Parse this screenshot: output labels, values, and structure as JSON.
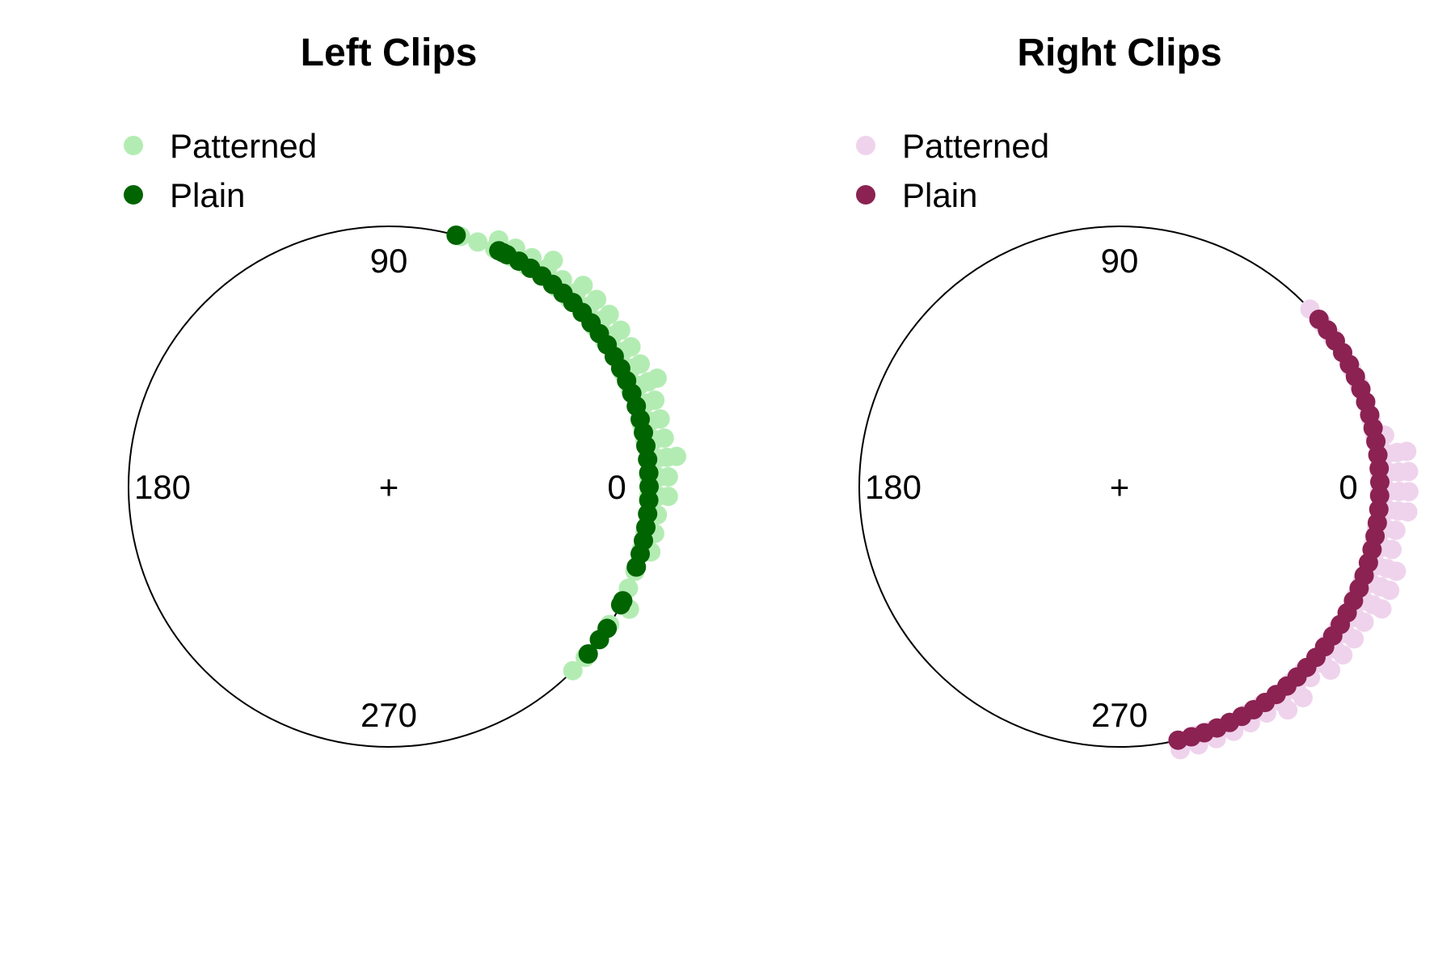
{
  "chart_data": [
    {
      "type": "circular-stacked-dot",
      "title": "Left Clips",
      "angle_labels": [
        "0",
        "90",
        "180",
        "270"
      ],
      "center_mark": "+",
      "legend_placement": "top-left",
      "series": [
        {
          "name": "Patterned",
          "color": "#b3ecb3",
          "bins": [
            {
              "angle": -45,
              "count": 1
            },
            {
              "angle": -41,
              "count": 1
            },
            {
              "angle": -36,
              "count": 1
            },
            {
              "angle": -32,
              "count": 1
            },
            {
              "angle": -27,
              "count": 2
            },
            {
              "angle": -23,
              "count": 1
            },
            {
              "angle": -19,
              "count": 1
            },
            {
              "angle": -14,
              "count": 2
            },
            {
              "angle": -10,
              "count": 2
            },
            {
              "angle": -6,
              "count": 2
            },
            {
              "angle": -2,
              "count": 3
            },
            {
              "angle": 2,
              "count": 3
            },
            {
              "angle": 6,
              "count": 4
            },
            {
              "angle": 10,
              "count": 3
            },
            {
              "angle": 14,
              "count": 3
            },
            {
              "angle": 18,
              "count": 3
            },
            {
              "angle": 22,
              "count": 4
            },
            {
              "angle": 26,
              "count": 3
            },
            {
              "angle": 30,
              "count": 3
            },
            {
              "angle": 34,
              "count": 3
            },
            {
              "angle": 38,
              "count": 3
            },
            {
              "angle": 42,
              "count": 3
            },
            {
              "angle": 46,
              "count": 3
            },
            {
              "angle": 50,
              "count": 2
            },
            {
              "angle": 54,
              "count": 3
            },
            {
              "angle": 58,
              "count": 2
            },
            {
              "angle": 62,
              "count": 2
            },
            {
              "angle": 66,
              "count": 2
            },
            {
              "angle": 70,
              "count": 1
            },
            {
              "angle": 74,
              "count": 1
            }
          ]
        },
        {
          "name": "Plain",
          "color": "#006400",
          "bins": [
            {
              "angle": 75,
              "count": 1
            },
            {
              "angle": 65,
              "count": 1
            },
            {
              "angle": 64,
              "count": 1
            },
            {
              "angle": 63,
              "count": 1
            },
            {
              "angle": 60,
              "count": 1
            },
            {
              "angle": 57,
              "count": 1
            },
            {
              "angle": 54,
              "count": 1
            },
            {
              "angle": 51,
              "count": 1
            },
            {
              "angle": 48,
              "count": 1
            },
            {
              "angle": 45,
              "count": 1
            },
            {
              "angle": 42,
              "count": 1
            },
            {
              "angle": 39,
              "count": 1
            },
            {
              "angle": 36,
              "count": 1
            },
            {
              "angle": 33,
              "count": 1
            },
            {
              "angle": 30,
              "count": 1
            },
            {
              "angle": 27,
              "count": 1
            },
            {
              "angle": 24,
              "count": 1
            },
            {
              "angle": 21,
              "count": 1
            },
            {
              "angle": 18,
              "count": 1
            },
            {
              "angle": 15,
              "count": 1
            },
            {
              "angle": 12,
              "count": 1
            },
            {
              "angle": 9,
              "count": 1
            },
            {
              "angle": 6,
              "count": 1
            },
            {
              "angle": 3,
              "count": 1
            },
            {
              "angle": 0,
              "count": 1
            },
            {
              "angle": -3,
              "count": 1
            },
            {
              "angle": -6,
              "count": 1
            },
            {
              "angle": -9,
              "count": 1
            },
            {
              "angle": -12,
              "count": 1
            },
            {
              "angle": -15,
              "count": 1
            },
            {
              "angle": -18,
              "count": 1
            },
            {
              "angle": -26,
              "count": 1
            },
            {
              "angle": -27,
              "count": 1
            },
            {
              "angle": -33,
              "count": 1
            },
            {
              "angle": -36,
              "count": 1
            },
            {
              "angle": -40,
              "count": 1
            }
          ]
        }
      ]
    },
    {
      "type": "circular-stacked-dot",
      "title": "Right Clips",
      "angle_labels": [
        "0",
        "90",
        "180",
        "270"
      ],
      "center_mark": "+",
      "legend_placement": "top-left",
      "series": [
        {
          "name": "Patterned",
          "color": "#efd3ec",
          "bins": [
            {
              "angle": -77,
              "count": 2
            },
            {
              "angle": -73,
              "count": 2
            },
            {
              "angle": -69,
              "count": 2
            },
            {
              "angle": -65,
              "count": 2
            },
            {
              "angle": -61,
              "count": 2
            },
            {
              "angle": -57,
              "count": 2
            },
            {
              "angle": -53,
              "count": 3
            },
            {
              "angle": -49,
              "count": 3
            },
            {
              "angle": -45,
              "count": 2
            },
            {
              "angle": -41,
              "count": 3
            },
            {
              "angle": -37,
              "count": 3
            },
            {
              "angle": -33,
              "count": 3
            },
            {
              "angle": -29,
              "count": 3
            },
            {
              "angle": -25,
              "count": 4
            },
            {
              "angle": -21,
              "count": 4
            },
            {
              "angle": -17,
              "count": 4
            },
            {
              "angle": -13,
              "count": 3
            },
            {
              "angle": -9,
              "count": 3
            },
            {
              "angle": -5,
              "count": 4
            },
            {
              "angle": -1,
              "count": 4
            },
            {
              "angle": 3,
              "count": 4
            },
            {
              "angle": 7,
              "count": 4
            },
            {
              "angle": 11,
              "count": 2
            },
            {
              "angle": 15,
              "count": 1
            },
            {
              "angle": 19,
              "count": 1
            },
            {
              "angle": 23,
              "count": 1
            },
            {
              "angle": 27,
              "count": 1
            },
            {
              "angle": 31,
              "count": 1
            },
            {
              "angle": 35,
              "count": 1
            },
            {
              "angle": 39,
              "count": 1
            },
            {
              "angle": 43,
              "count": 1
            }
          ]
        },
        {
          "name": "Plain",
          "color": "#8b2252",
          "bins": [
            {
              "angle": 40,
              "count": 1
            },
            {
              "angle": 37,
              "count": 1
            },
            {
              "angle": 34,
              "count": 1
            },
            {
              "angle": 31,
              "count": 1
            },
            {
              "angle": 28,
              "count": 1
            },
            {
              "angle": 25,
              "count": 1
            },
            {
              "angle": 22,
              "count": 1
            },
            {
              "angle": 19,
              "count": 1
            },
            {
              "angle": 16,
              "count": 1
            },
            {
              "angle": 13,
              "count": 1
            },
            {
              "angle": 10,
              "count": 1
            },
            {
              "angle": 7,
              "count": 1
            },
            {
              "angle": 4,
              "count": 1
            },
            {
              "angle": 1,
              "count": 1
            },
            {
              "angle": -2,
              "count": 1
            },
            {
              "angle": -5,
              "count": 1
            },
            {
              "angle": -8,
              "count": 1
            },
            {
              "angle": -11,
              "count": 1
            },
            {
              "angle": -14,
              "count": 1
            },
            {
              "angle": -17,
              "count": 1
            },
            {
              "angle": -20,
              "count": 1
            },
            {
              "angle": -23,
              "count": 1
            },
            {
              "angle": -26,
              "count": 1
            },
            {
              "angle": -29,
              "count": 1
            },
            {
              "angle": -32,
              "count": 1
            },
            {
              "angle": -35,
              "count": 1
            },
            {
              "angle": -38,
              "count": 1
            },
            {
              "angle": -41,
              "count": 1
            },
            {
              "angle": -44,
              "count": 1
            },
            {
              "angle": -47,
              "count": 1
            },
            {
              "angle": -50,
              "count": 1
            },
            {
              "angle": -53,
              "count": 1
            },
            {
              "angle": -56,
              "count": 1
            },
            {
              "angle": -59,
              "count": 1
            },
            {
              "angle": -62,
              "count": 1
            },
            {
              "angle": -65,
              "count": 1
            },
            {
              "angle": -68,
              "count": 1
            },
            {
              "angle": -71,
              "count": 1
            },
            {
              "angle": -74,
              "count": 1
            },
            {
              "angle": -77,
              "count": 1
            }
          ]
        }
      ]
    }
  ]
}
